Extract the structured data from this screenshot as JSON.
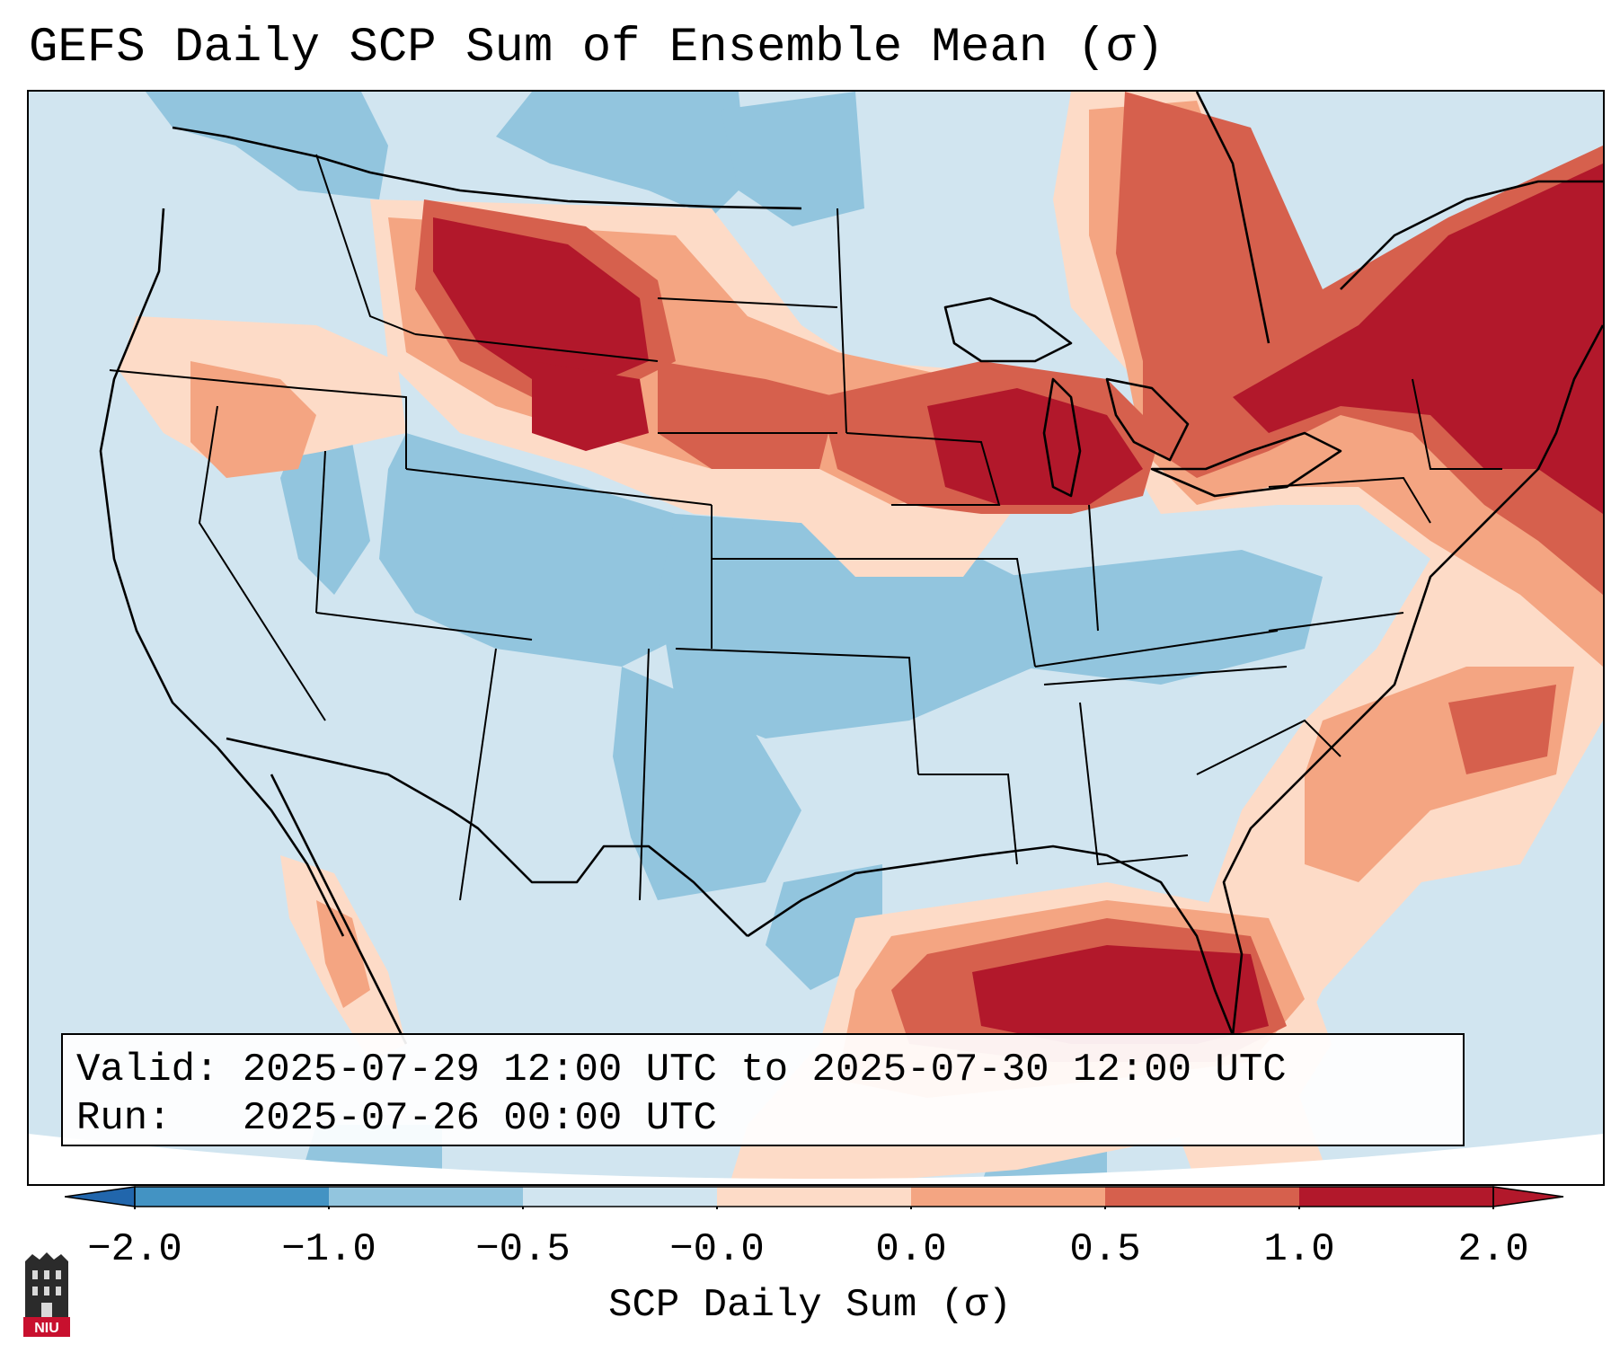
{
  "title": "GEFS Daily SCP Sum of Ensemble Mean (σ)",
  "info": {
    "valid_label": "Valid:",
    "valid_value": "2025-07-29 12:00 UTC to 2025-07-30 12:00 UTC",
    "run_label": "Run:",
    "run_value": "2025-07-26 00:00 UTC"
  },
  "colorbar": {
    "label": "SCP Daily Sum (σ)",
    "ticks": [
      "−2.0",
      "−1.0",
      "−0.5",
      "−0.0",
      "0.0",
      "0.5",
      "1.0",
      "2.0"
    ],
    "colors": {
      "lt_-2": "#2166ac",
      "-2_-1": "#4393c3",
      "-1_-0.5": "#92c5de",
      "-0.5_0": "#d1e5f0",
      "0_0.5": "#fddbc7",
      "0.5_1": "#f4a582",
      "1_2": "#d6604d",
      "gt_2": "#b2182b"
    }
  },
  "logo": {
    "text": "NIU"
  },
  "anomaly_regions": [
    {
      "name": "northern-rockies-montana",
      "level": "above 2.0"
    },
    {
      "name": "great-lakes-upper-midwest",
      "level": "above 2.0"
    },
    {
      "name": "new-england-northeast",
      "level": "above 2.0"
    },
    {
      "name": "gulf-of-mexico-florida",
      "level": "above 2.0"
    },
    {
      "name": "central-plains-texas",
      "level": "-1.0 to -0.5"
    }
  ]
}
